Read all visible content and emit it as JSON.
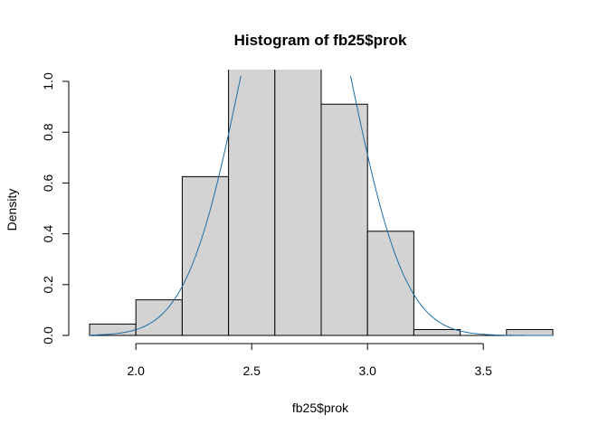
{
  "chart_data": {
    "type": "bar",
    "title": "Histogram of fb25$prok",
    "xlabel": "fb25$prok",
    "ylabel": "Density",
    "bins": [
      {
        "start": 1.8,
        "end": 2.0,
        "density": 0.045
      },
      {
        "start": 2.0,
        "end": 2.2,
        "density": 0.14
      },
      {
        "start": 2.2,
        "end": 2.4,
        "density": 0.625
      },
      {
        "start": 2.4,
        "end": 2.6,
        "density": 1.05
      },
      {
        "start": 2.6,
        "end": 2.8,
        "density": 1.05
      },
      {
        "start": 2.8,
        "end": 3.0,
        "density": 0.91
      },
      {
        "start": 3.0,
        "end": 3.2,
        "density": 0.41
      },
      {
        "start": 3.2,
        "end": 3.4,
        "density": 0.023
      },
      {
        "start": 3.4,
        "end": 3.6,
        "density": 0.0
      },
      {
        "start": 3.6,
        "end": 3.8,
        "density": 0.023
      }
    ],
    "xlim": [
      1.8,
      3.8
    ],
    "ylim": [
      0,
      1.0
    ],
    "x_ticks": [
      "2.0",
      "2.5",
      "3.0",
      "3.5"
    ],
    "y_ticks": [
      "0.0",
      "0.2",
      "0.4",
      "0.6",
      "0.8",
      "1.0"
    ],
    "density_curve": {
      "type": "normal",
      "mean": 2.69,
      "sd": 0.235,
      "color": "#1a6fa8"
    },
    "bar_fill": "#d3d3d3",
    "grid": false
  }
}
